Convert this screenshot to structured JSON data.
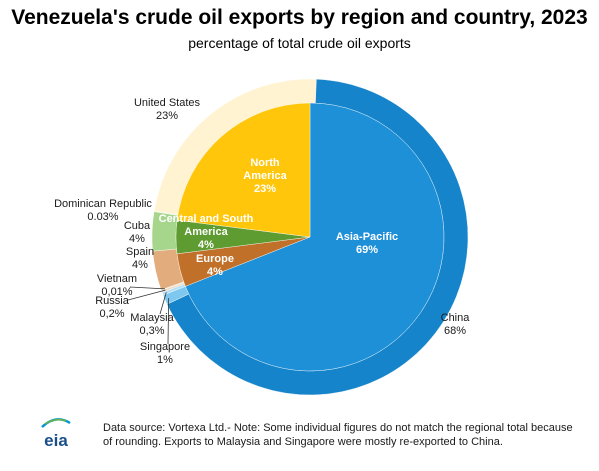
{
  "chart_data": {
    "type": "pie",
    "title": "Venezuela's crude oil exports by region and country, 2023",
    "subtitle": "percentage of total crude oil exports",
    "unit": "%",
    "regions": [
      {
        "name": "Asia-Pacific",
        "value": 69,
        "value_label": "69%",
        "color": "#1e90d8"
      },
      {
        "name": "Europe",
        "value": 4,
        "value_label": "4%",
        "color": "#c07028"
      },
      {
        "name": "Central and South America",
        "value": 4,
        "value_label": "4%",
        "color": "#5e9b30"
      },
      {
        "name": "North America",
        "value": 23,
        "value_label": "23%",
        "color": "#ffc60b"
      }
    ],
    "region_labels": [
      {
        "lines": [
          "Asia-Pacific",
          "69%"
        ]
      },
      {
        "lines": [
          "Europe",
          "4%"
        ]
      },
      {
        "lines": [
          "Central and South",
          "America",
          "4%"
        ]
      },
      {
        "lines": [
          "North",
          "America",
          "23%"
        ]
      }
    ],
    "countries": [
      {
        "name": "China",
        "value": 68,
        "value_label": "68%",
        "region": "Asia-Pacific",
        "color": "#1584ca"
      },
      {
        "name": "Singapore",
        "value": 1,
        "value_label": "1%",
        "region": "Asia-Pacific",
        "color": "#7ec8f0"
      },
      {
        "name": "Malaysia",
        "value": 0.3,
        "value_label": "0,3%",
        "region": "Asia-Pacific",
        "color": "#b4dff7"
      },
      {
        "name": "Russia",
        "value": 0.2,
        "value_label": "0,2%",
        "region": "Europe",
        "color": "#f2d7b8"
      },
      {
        "name": "Vietnam",
        "value": 0.01,
        "value_label": "0,01%",
        "region": "Asia-Pacific",
        "color": "#c6e4f5"
      },
      {
        "name": "Spain",
        "value": 4,
        "value_label": "4%",
        "region": "Europe",
        "color": "#e2ac7c"
      },
      {
        "name": "Cuba",
        "value": 4,
        "value_label": "4%",
        "region": "Central and South America",
        "color": "#a6d58c"
      },
      {
        "name": "Dominican Republic",
        "value": 0.03,
        "value_label": "0.03%",
        "region": "Central and South America",
        "color": "#d2ecc0"
      },
      {
        "name": "United States",
        "value": 23,
        "value_label": "23%",
        "region": "North America",
        "color": "#fff3d2"
      }
    ],
    "country_labels": [
      {
        "lines": [
          "China",
          "68%"
        ]
      },
      {
        "lines": [
          "Singapore",
          "1%"
        ]
      },
      {
        "lines": [
          "Malaysia",
          "0,3%"
        ]
      },
      {
        "lines": [
          "Russia",
          "0,2%"
        ]
      },
      {
        "lines": [
          "Vietnam",
          "0,01%"
        ]
      },
      {
        "lines": [
          "Spain",
          "4%"
        ]
      },
      {
        "lines": [
          "Cuba",
          "4%"
        ]
      },
      {
        "lines": [
          "Dominican Republic",
          "0.03%"
        ]
      },
      {
        "lines": [
          "United States",
          "23%"
        ]
      }
    ]
  },
  "footer": {
    "logo_text": "eia",
    "note": "Data source: Vortexa Ltd.- Note: Some individual figures do not match the regional total because of rounding. Exports to Malaysia and Singapore were mostly re-exported to China."
  }
}
